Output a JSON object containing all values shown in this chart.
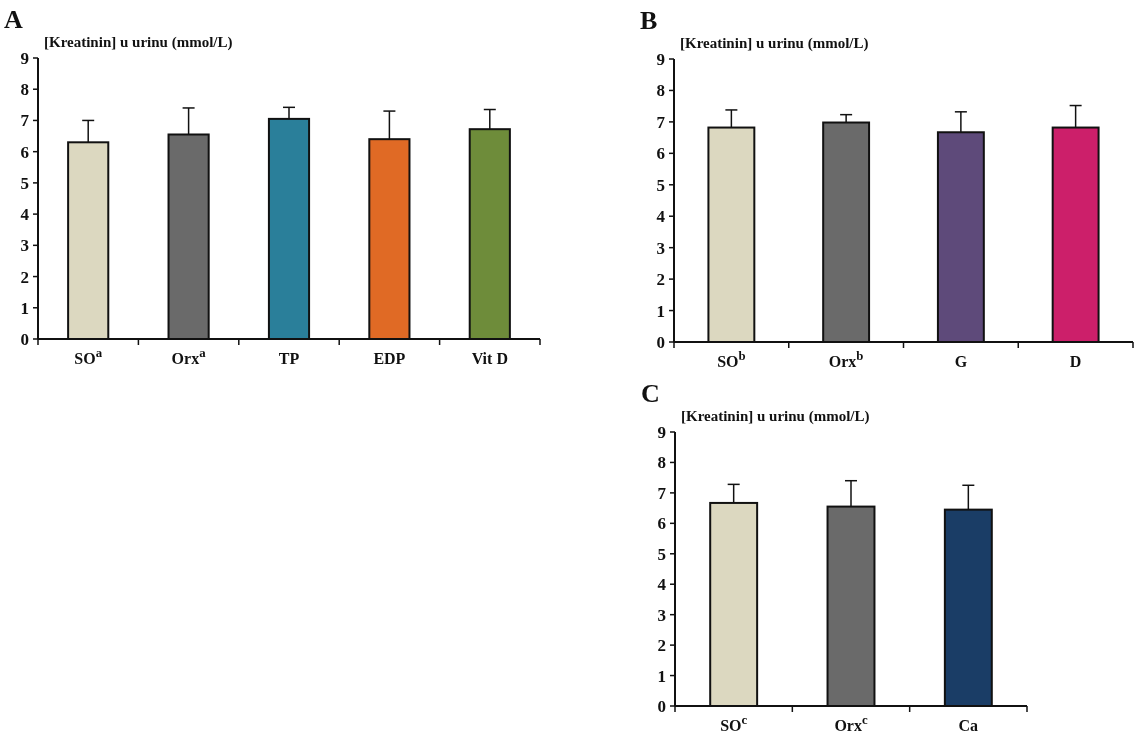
{
  "chart_data": [
    {
      "type": "bar",
      "title": "A",
      "ylabel": "[Kreatinin] u urinu (mmol/L)",
      "categories": [
        "SO$^{a}$",
        "Orx$^{a}$",
        "TP",
        "EDP",
        "Vit D"
      ],
      "values": [
        6.3,
        6.55,
        7.05,
        6.4,
        6.72
      ],
      "colors": [
        "#dcd8c0",
        "#6a6a6a",
        "#2a7f9a",
        "#e06a25",
        "#6e8c3a"
      ],
      "errors": [
        [
          6.3,
          7.0
        ],
        [
          6.55,
          7.4
        ],
        [
          7.05,
          7.42
        ],
        [
          6.4,
          7.3
        ],
        [
          6.72,
          7.35
        ]
      ],
      "ylim": [
        0,
        9
      ],
      "yticks": [
        0,
        1,
        2,
        3,
        4,
        5,
        6,
        7,
        8,
        9
      ]
    },
    {
      "type": "bar",
      "title": "B",
      "ylabel": "[Kreatinin] u urinu (mmol/L)",
      "categories": [
        "SO$^{b}$",
        "Orx$^{b}$",
        "G",
        "D"
      ],
      "values": [
        6.82,
        6.98,
        6.67,
        6.82
      ],
      "colors": [
        "#dcd8c0",
        "#6a6a6a",
        "#5e4a7a",
        "#cc1f6a"
      ],
      "errors": [
        [
          6.82,
          7.38
        ],
        [
          6.98,
          7.23
        ],
        [
          6.67,
          7.32
        ],
        [
          6.82,
          7.52
        ]
      ],
      "ylim": [
        0,
        9
      ],
      "yticks": [
        0,
        1,
        2,
        3,
        4,
        5,
        6,
        7,
        8,
        9
      ]
    },
    {
      "type": "bar",
      "title": "C",
      "ylabel": "[Kreatinin] u urinu (mmol/L)",
      "categories": [
        "SO$^{c}$",
        "Orx$^{c}$",
        "Ca"
      ],
      "values": [
        6.67,
        6.55,
        6.45
      ],
      "colors": [
        "#dcd8c0",
        "#6a6a6a",
        "#1a3d66"
      ],
      "errors": [
        [
          6.67,
          7.28
        ],
        [
          6.55,
          7.4
        ],
        [
          6.45,
          7.25
        ]
      ],
      "ylim": [
        0,
        9
      ],
      "yticks": [
        0,
        1,
        2,
        3,
        4,
        5,
        6,
        7,
        8,
        9
      ]
    }
  ]
}
